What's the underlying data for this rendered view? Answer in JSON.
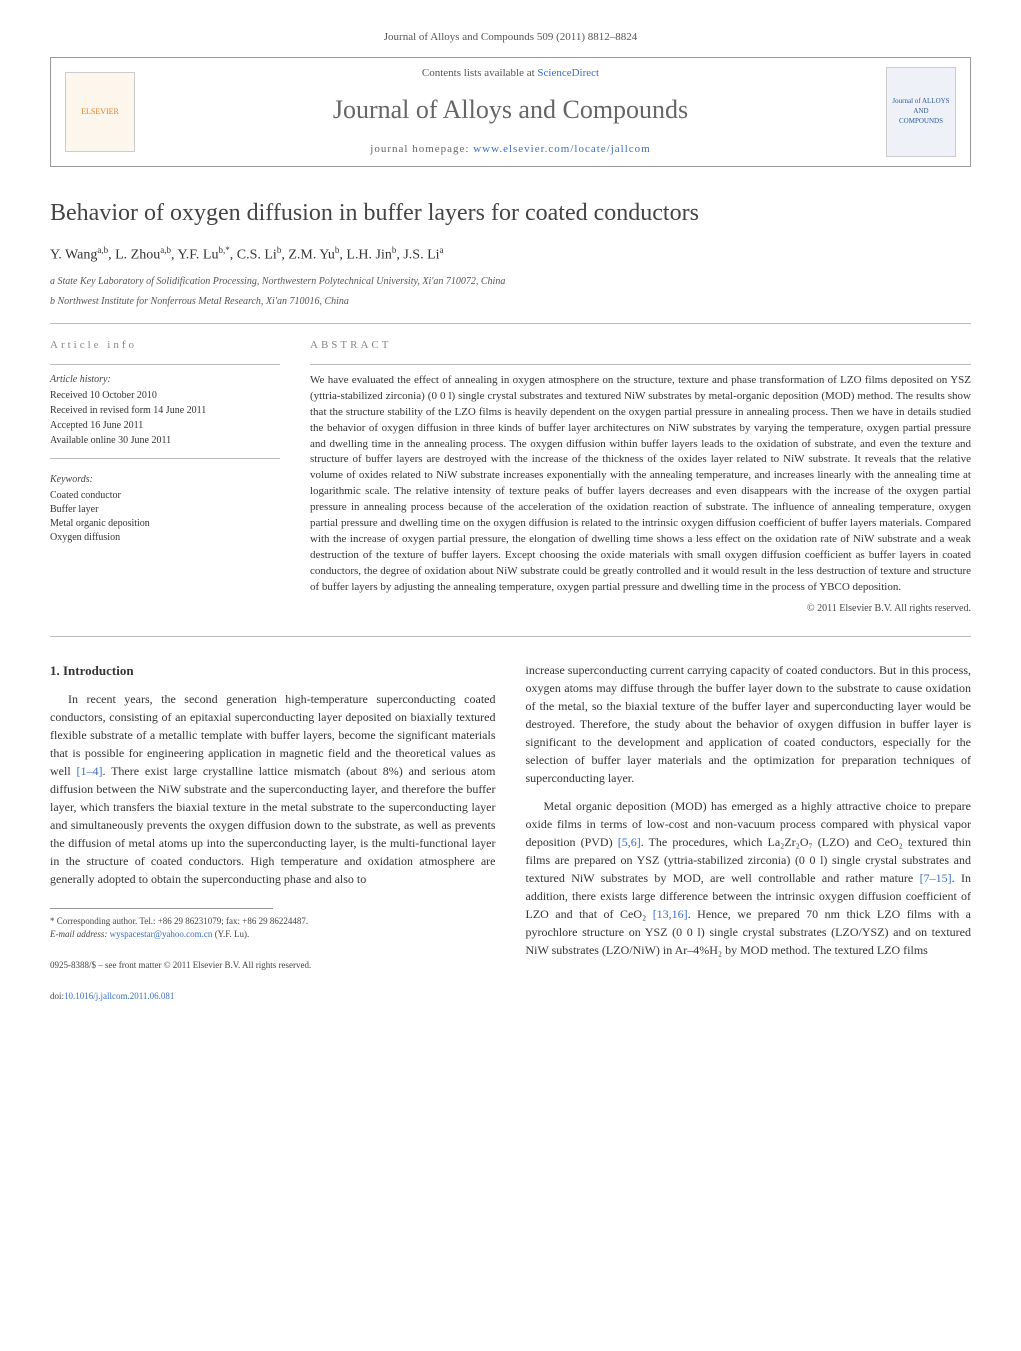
{
  "header": {
    "citation": "Journal of Alloys and Compounds 509 (2011) 8812–8824",
    "contents_prefix": "Contents lists available at ",
    "contents_link": "ScienceDirect",
    "journal_name": "Journal of Alloys and Compounds",
    "homepage_prefix": "journal homepage: ",
    "homepage_link": "www.elsevier.com/locate/jallcom",
    "elsevier_label": "ELSEVIER",
    "cover_label": "Journal of ALLOYS AND COMPOUNDS"
  },
  "article": {
    "title": "Behavior of oxygen diffusion in buffer layers for coated conductors",
    "authors_html": "Y. Wang<sup>a,b</sup>, L. Zhou<sup>a,b</sup>, Y.F. Lu<sup>b,*</sup>, C.S. Li<sup>b</sup>, Z.M. Yu<sup>b</sup>, L.H. Jin<sup>b</sup>, J.S. Li<sup>a</sup>",
    "affiliations": [
      "a State Key Laboratory of Solidification Processing, Northwestern Polytechnical University, Xi'an 710072, China",
      "b Northwest Institute for Nonferrous Metal Research, Xi'an 710016, China"
    ]
  },
  "info": {
    "heading": "ARTICLE INFO",
    "history_label": "Article history:",
    "history": [
      "Received 10 October 2010",
      "Received in revised form 14 June 2011",
      "Accepted 16 June 2011",
      "Available online 30 June 2011"
    ],
    "keywords_label": "Keywords:",
    "keywords": [
      "Coated conductor",
      "Buffer layer",
      "Metal organic deposition",
      "Oxygen diffusion"
    ]
  },
  "abstract": {
    "heading": "ABSTRACT",
    "text": "We have evaluated the effect of annealing in oxygen atmosphere on the structure, texture and phase transformation of LZO films deposited on YSZ (yttria-stabilized zirconia) (0 0 l) single crystal substrates and textured NiW substrates by metal-organic deposition (MOD) method. The results show that the structure stability of the LZO films is heavily dependent on the oxygen partial pressure in annealing process. Then we have in details studied the behavior of oxygen diffusion in three kinds of buffer layer architectures on NiW substrates by varying the temperature, oxygen partial pressure and dwelling time in the annealing process. The oxygen diffusion within buffer layers leads to the oxidation of substrate, and even the texture and structure of buffer layers are destroyed with the increase of the thickness of the oxides layer related to NiW substrate. It reveals that the relative volume of oxides related to NiW substrate increases exponentially with the annealing temperature, and increases linearly with the annealing time at logarithmic scale. The relative intensity of texture peaks of buffer layers decreases and even disappears with the increase of the oxygen partial pressure in annealing process because of the acceleration of the oxidation reaction of substrate. The influence of annealing temperature, oxygen partial pressure and dwelling time on the oxygen diffusion is related to the intrinsic oxygen diffusion coefficient of buffer layers materials. Compared with the increase of oxygen partial pressure, the elongation of dwelling time shows a less effect on the oxidation rate of NiW substrate and a weak destruction of the texture of buffer layers. Except choosing the oxide materials with small oxygen diffusion coefficient as buffer layers in coated conductors, the degree of oxidation about NiW substrate could be greatly controlled and it would result in the less destruction of texture and structure of buffer layers by adjusting the annealing temperature, oxygen partial pressure and dwelling time in the process of YBCO deposition.",
    "copyright": "© 2011 Elsevier B.V. All rights reserved."
  },
  "body": {
    "section_heading": "1. Introduction",
    "left_paragraphs": [
      "In recent years, the second generation high-temperature superconducting coated conductors, consisting of an epitaxial superconducting layer deposited on biaxially textured flexible substrate of a metallic template with buffer layers, become the significant materials that is possible for engineering application in magnetic field and the theoretical values as well [1–4]. There exist large crystalline lattice mismatch (about 8%) and serious atom diffusion between the NiW substrate and the superconducting layer, and therefore the buffer layer, which transfers the biaxial texture in the metal substrate to the superconducting layer and simultaneously prevents the oxygen diffusion down to the substrate, as well as prevents the diffusion of metal atoms up into the superconducting layer, is the multi-functional layer in the structure of coated conductors. High temperature and oxidation atmosphere are generally adopted to obtain the superconducting phase and also to"
    ],
    "right_paragraphs": [
      "increase superconducting current carrying capacity of coated conductors. But in this process, oxygen atoms may diffuse through the buffer layer down to the substrate to cause oxidation of the metal, so the biaxial texture of the buffer layer and superconducting layer would be destroyed. Therefore, the study about the behavior of oxygen diffusion in buffer layer is significant to the development and application of coated conductors, especially for the selection of buffer layer materials and the optimization for preparation techniques of superconducting layer.",
      "Metal organic deposition (MOD) has emerged as a highly attractive choice to prepare oxide films in terms of low-cost and non-vacuum process compared with physical vapor deposition (PVD) [5,6]. The procedures, which La₂Zr₂O₇ (LZO) and CeO₂ textured thin films are prepared on YSZ (yttria-stabilized zirconia) (0 0 l) single crystal substrates and textured NiW substrates by MOD, are well controllable and rather mature [7–15]. In addition, there exists large difference between the intrinsic oxygen diffusion coefficient of LZO and that of CeO₂ [13,16]. Hence, we prepared 70 nm thick LZO films with a pyrochlore structure on YSZ (0 0 l) single crystal substrates (LZO/YSZ) and on textured NiW substrates (LZO/NiW) in Ar–4%H₂ by MOD method. The textured LZO films"
    ]
  },
  "footnote": {
    "corresponding": "* Corresponding author. Tel.: +86 29 86231079; fax: +86 29 86224487.",
    "email_label": "E-mail address: ",
    "email": "wyspacestar@yahoo.com.cn",
    "email_suffix": " (Y.F. Lu)."
  },
  "footer": {
    "line1": "0925-8388/$ – see front matter © 2011 Elsevier B.V. All rights reserved.",
    "doi_prefix": "doi:",
    "doi": "10.1016/j.jallcom.2011.06.081"
  },
  "refs": {
    "r1": "[1–4]",
    "r2": "[5,6]",
    "r3": "[7–15]",
    "r4": "[13,16]"
  },
  "colors": {
    "link": "#3b6fc4",
    "text": "#333333",
    "muted": "#888888",
    "border": "#bbbbbb"
  }
}
